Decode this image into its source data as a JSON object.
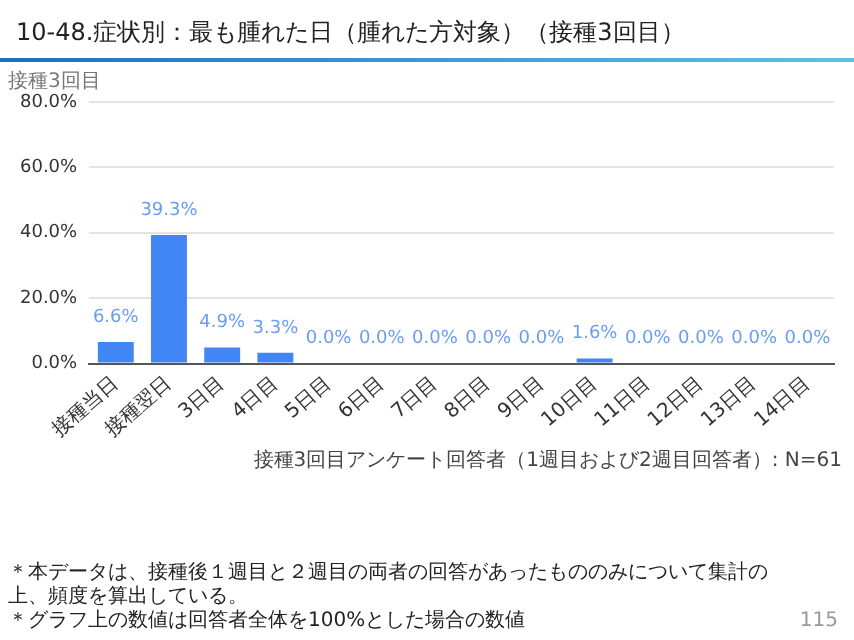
{
  "chart_data": {
    "type": "bar",
    "title": "10-48.症状別：最も腫れた日（腫れた方対象）（接種3回目）",
    "subtitle": "接種3回目",
    "categories": [
      "接種当日",
      "接種翌日",
      "3日目",
      "4日目",
      "5日目",
      "6日目",
      "7日目",
      "8日目",
      "9日目",
      "10日目",
      "11日目",
      "12日目",
      "13日目",
      "14日目"
    ],
    "values": [
      6.6,
      39.3,
      4.9,
      3.3,
      0,
      0,
      0,
      0,
      0,
      1.6,
      0,
      0,
      0,
      0
    ],
    "value_labels": [
      "6.6%",
      "39.3%",
      "4.9%",
      "3.3%",
      "0.0%",
      "0.0%",
      "0.0%",
      "0.0%",
      "0.0%",
      "1.6%",
      "0.0%",
      "0.0%",
      "0.0%",
      "0.0%"
    ],
    "color": "#4285f4",
    "ylim": [
      0,
      80
    ],
    "yticks": [
      {
        "value": 0,
        "label": "0.0%"
      },
      {
        "value": 20,
        "label": "20.0%"
      },
      {
        "value": 40,
        "label": "40.0%"
      },
      {
        "value": 60,
        "label": "60.0%"
      },
      {
        "value": 80,
        "label": "80.0%"
      }
    ],
    "grid": "y",
    "legend": false,
    "annotations": [
      "接種3回目アンケート回答者（1週目および2週目回答者）: N=61",
      "＊本データは、接種後１週目と２週目の両者の回答があったもののみについて集計の上、頻度を算出している。",
      "＊グラフ上の数値は回答者全体を100%とした場合の数値",
      "115"
    ]
  }
}
